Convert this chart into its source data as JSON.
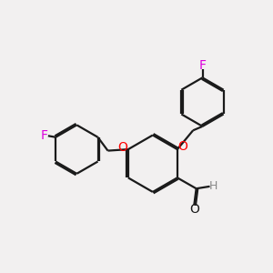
{
  "bg_color": "#f2f0f0",
  "bond_color": "#1a1a1a",
  "oxygen_color": "#ff0000",
  "fluorine_color": "#dd00dd",
  "hydrogen_color": "#888888",
  "line_width": 1.6,
  "dbl_sep": 0.055,
  "figsize": [
    3.0,
    3.0
  ],
  "dpi": 100,
  "xlim": [
    0.0,
    10.0
  ],
  "ylim": [
    0.0,
    10.0
  ]
}
